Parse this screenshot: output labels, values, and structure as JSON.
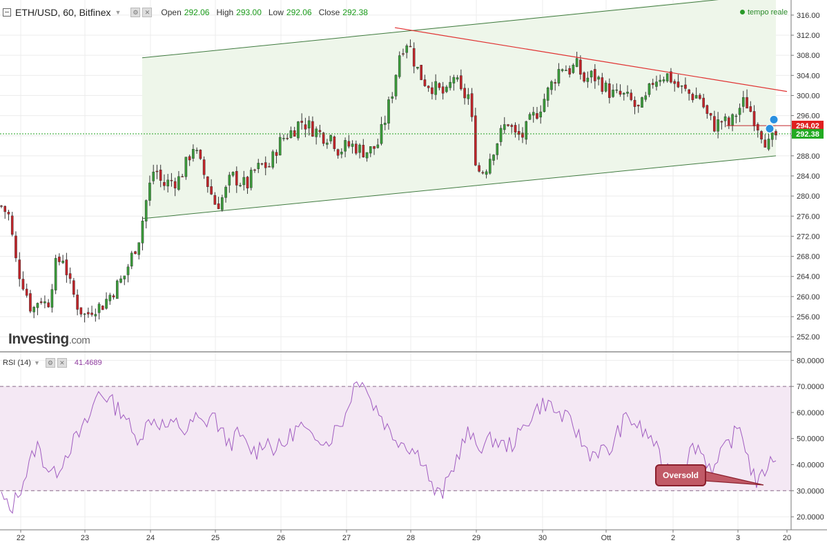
{
  "header": {
    "symbol": "ETH/USD, 60, Bitfinex",
    "open_label": "Open",
    "open": "292.06",
    "high_label": "High",
    "high": "293.00",
    "low_label": "Low",
    "low": "292.06",
    "close_label": "Close",
    "close": "292.38",
    "realtime": "tempo reale"
  },
  "logo": {
    "brand": "Investing",
    "suffix": ".com"
  },
  "rsi": {
    "label": "RSI (14)",
    "value": "41.4689"
  },
  "annotation": "Oversold",
  "colors": {
    "up": "#3a9a3a",
    "down": "#c0252a",
    "channel": "#3f7a3f",
    "channel_fill": "#eef6ea",
    "resistance": "#e03030",
    "rsi_line": "#a05cc0",
    "rsi_band": "#f4e8f4",
    "price_tag_up": "#22aa22",
    "price_tag_down": "#e02020",
    "flag_icon": "#2a90e0"
  },
  "icons": [
    "collapse-icon",
    "settings-icon",
    "close-icon",
    "flag-icon"
  ],
  "chart_data": [
    {
      "type": "candlestick",
      "title": "ETH/USD, 60, Bitfinex",
      "ylim": [
        249,
        319
      ],
      "yticks": [
        "316.00",
        "312.00",
        "308.00",
        "304.00",
        "300.00",
        "296.00",
        "292.00",
        "288.00",
        "284.00",
        "280.00",
        "276.00",
        "272.00",
        "268.00",
        "264.00",
        "260.00",
        "256.00",
        "252.00"
      ],
      "xticks": [
        "22",
        "23",
        "24",
        "25",
        "26",
        "27",
        "28",
        "29",
        "30",
        "Ott",
        "2",
        "3",
        "20"
      ],
      "price_tags": [
        {
          "value": "294.02",
          "kind": "down"
        },
        {
          "value": "292.38",
          "kind": "up"
        }
      ],
      "current_price": 292.38,
      "close_path": [
        [
          0,
          278
        ],
        [
          1,
          276
        ],
        [
          2,
          266
        ],
        [
          3,
          262
        ],
        [
          4,
          257
        ],
        [
          5,
          260
        ],
        [
          6,
          258
        ],
        [
          7,
          266
        ],
        [
          8,
          268
        ],
        [
          9,
          262
        ],
        [
          10,
          258
        ],
        [
          11,
          256
        ],
        [
          12,
          258
        ],
        [
          13,
          258
        ],
        [
          14,
          260
        ],
        [
          15,
          262
        ],
        [
          16,
          264
        ],
        [
          17,
          268
        ],
        [
          18,
          272
        ],
        [
          19,
          280
        ],
        [
          20,
          286
        ],
        [
          21,
          282
        ],
        [
          22,
          283
        ],
        [
          23,
          283
        ],
        [
          24,
          286
        ],
        [
          25,
          290
        ],
        [
          26,
          286
        ],
        [
          27,
          282
        ],
        [
          28,
          278
        ],
        [
          29,
          280
        ],
        [
          30,
          284
        ],
        [
          31,
          283
        ],
        [
          32,
          282
        ],
        [
          33,
          285
        ],
        [
          34,
          286
        ],
        [
          35,
          286
        ],
        [
          36,
          290
        ],
        [
          37,
          292
        ],
        [
          38,
          293
        ],
        [
          39,
          295
        ],
        [
          40,
          294
        ],
        [
          41,
          293
        ],
        [
          42,
          292
        ],
        [
          43,
          292
        ],
        [
          44,
          289
        ],
        [
          45,
          290
        ],
        [
          46,
          290
        ],
        [
          47,
          289
        ],
        [
          48,
          289
        ],
        [
          49,
          290
        ],
        [
          50,
          295
        ],
        [
          51,
          301
        ],
        [
          52,
          309
        ],
        [
          53,
          311
        ],
        [
          54,
          306
        ],
        [
          55,
          303
        ],
        [
          56,
          302
        ],
        [
          57,
          301
        ],
        [
          58,
          300
        ],
        [
          59,
          304
        ],
        [
          60,
          300
        ],
        [
          61,
          300
        ],
        [
          62,
          285
        ],
        [
          63,
          285
        ],
        [
          64,
          289
        ],
        [
          65,
          292
        ],
        [
          66,
          295
        ],
        [
          67,
          292
        ],
        [
          68,
          292
        ],
        [
          69,
          295
        ],
        [
          70,
          297
        ],
        [
          71,
          300
        ],
        [
          72,
          303
        ],
        [
          73,
          306
        ],
        [
          74,
          305
        ],
        [
          75,
          306
        ],
        [
          76,
          303
        ],
        [
          77,
          304
        ],
        [
          78,
          303
        ],
        [
          79,
          301
        ],
        [
          80,
          300
        ],
        [
          81,
          300
        ],
        [
          82,
          299
        ],
        [
          83,
          297
        ],
        [
          84,
          299
        ],
        [
          85,
          303
        ],
        [
          86,
          304
        ],
        [
          87,
          304
        ],
        [
          88,
          302
        ],
        [
          89,
          301
        ],
        [
          90,
          300
        ],
        [
          91,
          300
        ],
        [
          92,
          296
        ],
        [
          93,
          294
        ],
        [
          94,
          295
        ],
        [
          95,
          294
        ],
        [
          96,
          297
        ],
        [
          97,
          299
        ],
        [
          98,
          296
        ],
        [
          99,
          293
        ],
        [
          100,
          290
        ],
        [
          101,
          292
        ]
      ]
    },
    {
      "type": "line",
      "title": "RSI (14)",
      "ylim": [
        15,
        83
      ],
      "yticks": [
        "80.0000",
        "70.0000",
        "60.0000",
        "50.0000",
        "40.0000",
        "30.0000",
        "20.0000"
      ],
      "band": [
        30,
        70
      ],
      "last": 41.4689,
      "rsi_path": [
        [
          0,
          28
        ],
        [
          1,
          22
        ],
        [
          2,
          30
        ],
        [
          3,
          38
        ],
        [
          4,
          48
        ],
        [
          5,
          40
        ],
        [
          6,
          36
        ],
        [
          7,
          42
        ],
        [
          8,
          48
        ],
        [
          9,
          52
        ],
        [
          10,
          58
        ],
        [
          11,
          68
        ],
        [
          12,
          66
        ],
        [
          13,
          62
        ],
        [
          14,
          60
        ],
        [
          15,
          50
        ],
        [
          16,
          52
        ],
        [
          17,
          58
        ],
        [
          18,
          56
        ],
        [
          19,
          54
        ],
        [
          20,
          56
        ],
        [
          21,
          52
        ],
        [
          22,
          58
        ],
        [
          23,
          55
        ],
        [
          24,
          60
        ],
        [
          25,
          52
        ],
        [
          26,
          48
        ],
        [
          27,
          52
        ],
        [
          28,
          46
        ],
        [
          29,
          45
        ],
        [
          30,
          50
        ],
        [
          31,
          46
        ],
        [
          32,
          47
        ],
        [
          33,
          52
        ],
        [
          34,
          55
        ],
        [
          35,
          50
        ],
        [
          36,
          52
        ],
        [
          37,
          48
        ],
        [
          38,
          54
        ],
        [
          39,
          58
        ],
        [
          40,
          70
        ],
        [
          41,
          74
        ],
        [
          42,
          64
        ],
        [
          43,
          60
        ],
        [
          44,
          53
        ],
        [
          45,
          50
        ],
        [
          46,
          48
        ],
        [
          47,
          45
        ],
        [
          48,
          42
        ],
        [
          49,
          30
        ],
        [
          50,
          28
        ],
        [
          51,
          36
        ],
        [
          52,
          45
        ],
        [
          53,
          52
        ],
        [
          54,
          47
        ],
        [
          55,
          48
        ],
        [
          56,
          50
        ],
        [
          57,
          47
        ],
        [
          58,
          48
        ],
        [
          59,
          52
        ],
        [
          60,
          58
        ],
        [
          61,
          62
        ],
        [
          62,
          64
        ],
        [
          63,
          60
        ],
        [
          64,
          58
        ],
        [
          65,
          55
        ],
        [
          66,
          48
        ],
        [
          67,
          44
        ],
        [
          68,
          46
        ],
        [
          69,
          44
        ],
        [
          70,
          52
        ],
        [
          71,
          58
        ],
        [
          72,
          56
        ],
        [
          73,
          52
        ],
        [
          74,
          50
        ],
        [
          75,
          40
        ],
        [
          76,
          38
        ],
        [
          77,
          34
        ],
        [
          78,
          44
        ],
        [
          79,
          48
        ],
        [
          80,
          42
        ],
        [
          81,
          38
        ],
        [
          82,
          45
        ],
        [
          83,
          50
        ],
        [
          84,
          55
        ],
        [
          85,
          40
        ],
        [
          86,
          32
        ],
        [
          87,
          40
        ],
        [
          88,
          41.4689
        ]
      ]
    }
  ]
}
